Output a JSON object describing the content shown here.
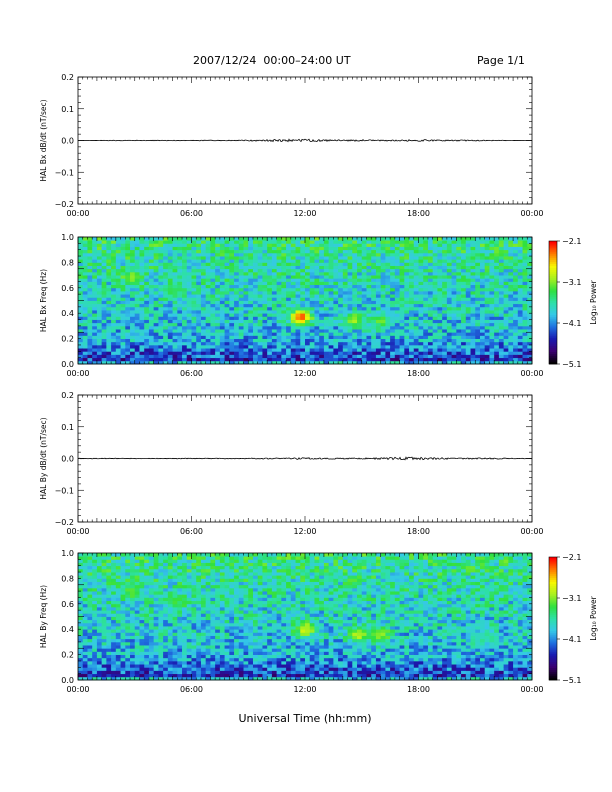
{
  "header": {
    "title": "2007/12/24  00:00–24:00 UT",
    "page": "Page 1/1"
  },
  "xaxis": {
    "label": "Universal Time (hh:mm)",
    "ticks": [
      "00:00",
      "06:00",
      "12:00",
      "18:00",
      "00:00"
    ]
  },
  "colorbar": {
    "label": "Log₁₀ Power",
    "ticks": [
      -2.1,
      -3.1,
      -4.1,
      -5.1
    ],
    "tick_labels": [
      "−2.1",
      "−3.1",
      "−4.1",
      "−5.1"
    ],
    "colors": [
      "#000000",
      "#3b0070",
      "#1a1ab0",
      "#1f6fe0",
      "#35c8e8",
      "#2de0a8",
      "#30e040",
      "#a8f020",
      "#f8f800",
      "#ff8000",
      "#ff0000"
    ]
  },
  "chart_data": [
    {
      "type": "line",
      "ylabel": "HAL Bx dB/dt (nT/sec)",
      "x": [
        0,
        2,
        4,
        6,
        8,
        9,
        10,
        11,
        12,
        13,
        14,
        15,
        16,
        17,
        18,
        19,
        20,
        21,
        22,
        24
      ],
      "y": [
        0.0,
        0.0,
        0.0,
        0.0,
        0.0,
        0.0,
        0.0,
        0.0,
        0.0,
        0.0,
        0.0,
        0.0,
        0.0,
        0.0,
        0.0,
        0.0,
        0.0,
        0.0,
        0.0,
        0.0
      ],
      "noise_envelope": [
        0.0,
        0.001,
        0.001,
        0.001,
        0.001,
        0.002,
        0.003,
        0.004,
        0.005,
        0.003,
        0.002,
        0.003,
        0.002,
        0.002,
        0.003,
        0.002,
        0.002,
        0.002,
        0.001,
        0.0
      ],
      "ylim": [
        -0.2,
        0.2
      ],
      "yticks": [
        0.2,
        0.1,
        0.0,
        -0.1,
        -0.2
      ],
      "ytick_labels": [
        "0.2",
        "0.1",
        "0.0",
        "−0.1",
        "−0.2"
      ],
      "xlim": [
        0,
        24
      ]
    },
    {
      "type": "heatmap",
      "ylabel": "HAL Bx Freq (Hz)",
      "ylim": [
        0,
        1
      ],
      "yticks": [
        1.0,
        0.8,
        0.6,
        0.4,
        0.2,
        0.0
      ],
      "ytick_labels": [
        "1.0",
        "0.8",
        "0.6",
        "0.4",
        "0.2",
        "0.0"
      ],
      "xlim": [
        0,
        24
      ],
      "zlim": [
        -5.1,
        -2.1
      ],
      "features": [
        {
          "x": 2.8,
          "y": 0.68,
          "value": -3.1
        },
        {
          "x": 5.0,
          "y": 0.58,
          "value": -3.3
        },
        {
          "x": 11.8,
          "y": 0.37,
          "value": -2.2
        },
        {
          "x": 14.6,
          "y": 0.35,
          "value": -3.0
        },
        {
          "x": 16.0,
          "y": 0.34,
          "value": -3.2
        }
      ]
    },
    {
      "type": "line",
      "ylabel": "HAL By dB/dt (nT/sec)",
      "x": [
        0,
        2,
        4,
        6,
        8,
        10,
        11,
        12,
        13,
        14,
        15,
        16,
        17,
        18,
        19,
        20,
        21,
        22,
        23,
        24
      ],
      "y": [
        0.0,
        0.0,
        0.0,
        0.0,
        0.0,
        0.0,
        0.0,
        0.0,
        0.0,
        0.0,
        0.0,
        0.0,
        0.0,
        0.0,
        0.0,
        0.0,
        0.0,
        0.0,
        0.0,
        0.0
      ],
      "noise_envelope": [
        0.001,
        0.001,
        0.001,
        0.001,
        0.001,
        0.002,
        0.002,
        0.003,
        0.002,
        0.002,
        0.002,
        0.003,
        0.004,
        0.005,
        0.003,
        0.002,
        0.002,
        0.002,
        0.001,
        0.001
      ],
      "ylim": [
        -0.2,
        0.2
      ],
      "yticks": [
        0.2,
        0.1,
        0.0,
        -0.1,
        -0.2
      ],
      "ytick_labels": [
        "0.2",
        "0.1",
        "0.0",
        "−0.1",
        "−0.2"
      ],
      "xlim": [
        0,
        24
      ]
    },
    {
      "type": "heatmap",
      "ylabel": "HAL By Freq (Hz)",
      "ylim": [
        0,
        1
      ],
      "yticks": [
        1.0,
        0.8,
        0.6,
        0.4,
        0.2,
        0.0
      ],
      "ytick_labels": [
        "1.0",
        "0.8",
        "0.6",
        "0.4",
        "0.2",
        "0.0"
      ],
      "xlim": [
        0,
        24
      ],
      "zlim": [
        -5.1,
        -2.1
      ],
      "features": [
        {
          "x": 2.8,
          "y": 0.7,
          "value": -3.2
        },
        {
          "x": 5.2,
          "y": 0.62,
          "value": -3.3
        },
        {
          "x": 12.0,
          "y": 0.4,
          "value": -2.8
        },
        {
          "x": 14.8,
          "y": 0.36,
          "value": -2.9
        },
        {
          "x": 16.0,
          "y": 0.36,
          "value": -3.0
        },
        {
          "x": 21.3,
          "y": 0.32,
          "value": -3.6
        }
      ]
    }
  ]
}
